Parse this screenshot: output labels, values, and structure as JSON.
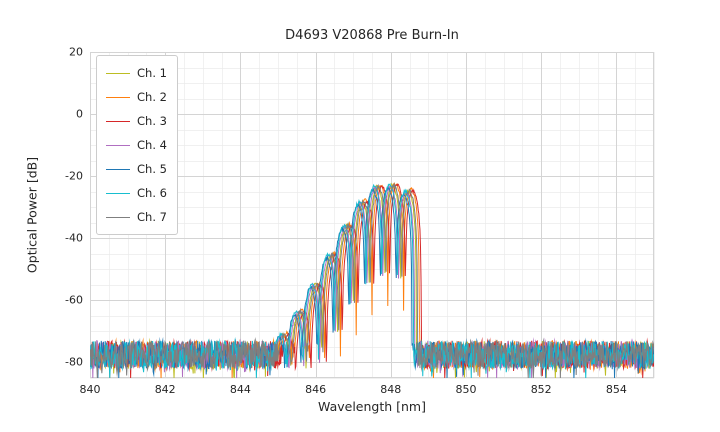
{
  "chart_data": {
    "type": "line",
    "title": "D4693 V20868 Pre Burn-In",
    "xlabel": "Wavelength [nm]",
    "ylabel": "Optical Power [dB]",
    "xlim": [
      840,
      855
    ],
    "ylim": [
      -85,
      20
    ],
    "xticks": [
      840,
      842,
      844,
      846,
      848,
      850,
      852,
      854
    ],
    "yticks": [
      20,
      0,
      -20,
      -40,
      -60,
      -80
    ],
    "minor_x_step": 0.5,
    "minor_y_step": 5,
    "grid": true,
    "legend_position": "upper-left",
    "colors": {
      "major_grid": "#d4d4d4",
      "minor_grid": "#ebebeb",
      "text": "#262626",
      "background": "#ffffff"
    },
    "series": [
      {
        "name": "Ch. 1",
        "color": "#bcbd22",
        "offset_nm": 0.0,
        "level_db": 0.0,
        "seed": 11
      },
      {
        "name": "Ch. 2",
        "color": "#ff7f0e",
        "offset_nm": 0.08,
        "level_db": 0.5,
        "seed": 22
      },
      {
        "name": "Ch. 3",
        "color": "#d62728",
        "offset_nm": 0.13,
        "level_db": 0.0,
        "seed": 33
      },
      {
        "name": "Ch. 4",
        "color": "#b06fc1",
        "offset_nm": -0.05,
        "level_db": -0.5,
        "seed": 44
      },
      {
        "name": "Ch. 5",
        "color": "#1f77b4",
        "offset_nm": -0.12,
        "level_db": -1.0,
        "seed": 55
      },
      {
        "name": "Ch. 6",
        "color": "#17becf",
        "offset_nm": -0.08,
        "level_db": 0.0,
        "seed": 66
      },
      {
        "name": "Ch. 7",
        "color": "#7f7f7f",
        "offset_nm": 0.03,
        "level_db": 0.0,
        "seed": 77
      }
    ],
    "spectrum_model": {
      "noise_floor_db": -77.5,
      "noise_amplitude_db": 4.5,
      "fringe_period_nm": 0.42,
      "fringe_notch_floor": 0.01,
      "band_start_nm": 844.95,
      "band_stop_nm": 848.68,
      "envelope_points": [
        [
          844.95,
          -74
        ],
        [
          845.3,
          -68
        ],
        [
          845.7,
          -61
        ],
        [
          846.1,
          -52
        ],
        [
          846.5,
          -43
        ],
        [
          846.9,
          -34
        ],
        [
          847.3,
          -27
        ],
        [
          847.6,
          -23.5
        ],
        [
          847.9,
          -22.5
        ],
        [
          848.2,
          -23.5
        ],
        [
          848.5,
          -25
        ],
        [
          848.68,
          -26
        ]
      ]
    }
  }
}
